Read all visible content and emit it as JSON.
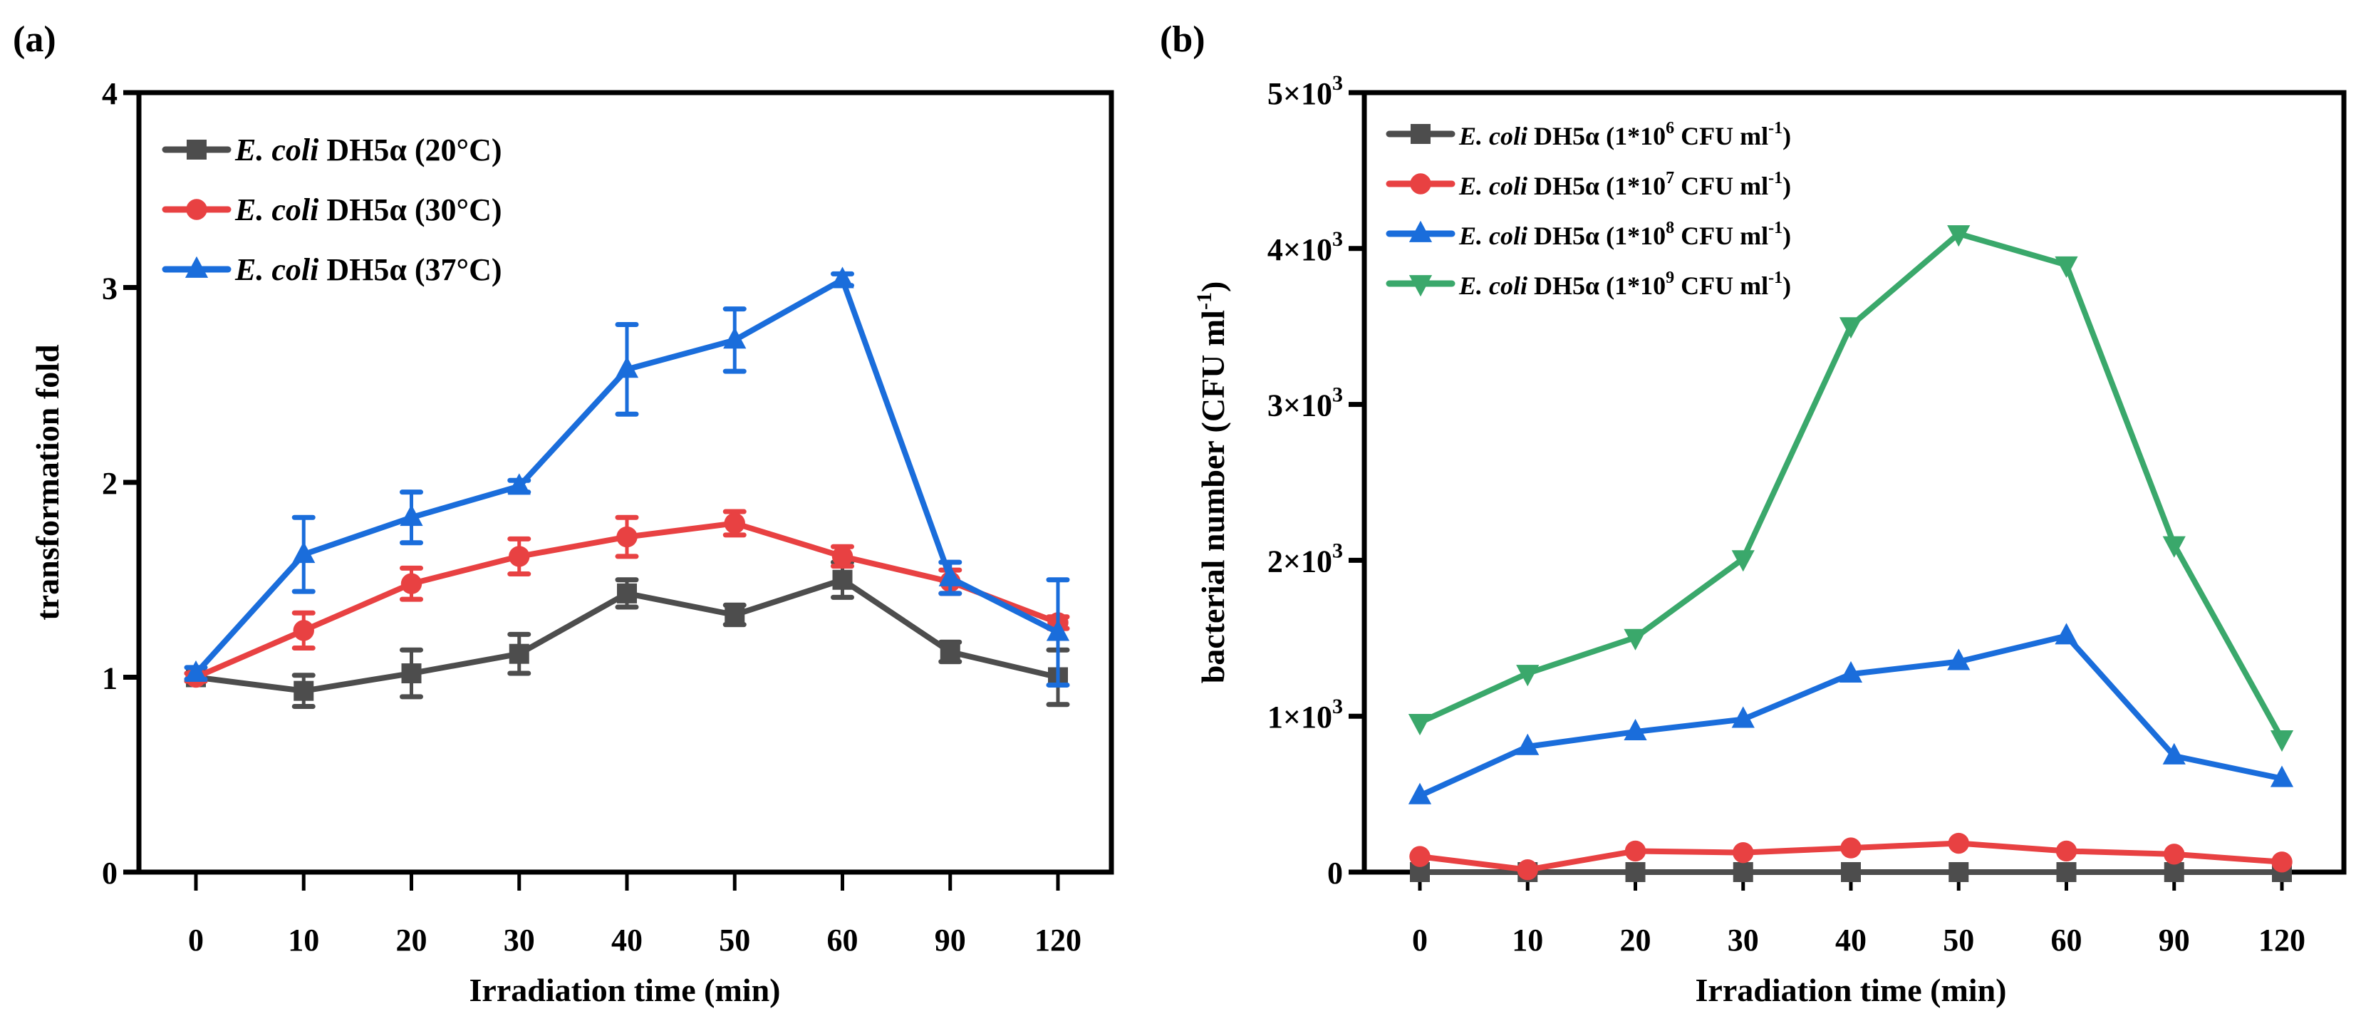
{
  "chart_data": [
    {
      "panel_label": "(a)",
      "type": "line",
      "title": "",
      "xlabel": "Irradiation time (min)",
      "ylabel": "transformation fold",
      "categories": [
        "0",
        "10",
        "20",
        "30",
        "40",
        "50",
        "60",
        "90",
        "120"
      ],
      "ylim": [
        0,
        4
      ],
      "yticks": [
        0,
        1,
        2,
        3,
        4
      ],
      "ytick_labels": [
        "0",
        "1",
        "2",
        "3",
        "4"
      ],
      "grid": false,
      "legend_position": "top-left",
      "error_bars": true,
      "series": [
        {
          "name": "E. coli DH5α (20°C)",
          "name_italic": "E. coli",
          "name_rest": " DH5α (20°C)",
          "color": "#4d4d4d",
          "marker": "square",
          "values": [
            1.0,
            0.93,
            1.02,
            1.12,
            1.43,
            1.32,
            1.5,
            1.13,
            1.0
          ],
          "errors": [
            0.02,
            0.08,
            0.12,
            0.1,
            0.07,
            0.05,
            0.09,
            0.05,
            0.14
          ]
        },
        {
          "name": "E. coli DH5α (30°C)",
          "name_italic": "E. coli",
          "name_rest": " DH5α (30°C)",
          "color": "#e84142",
          "marker": "circle",
          "values": [
            1.0,
            1.24,
            1.48,
            1.62,
            1.72,
            1.79,
            1.62,
            1.49,
            1.28
          ],
          "errors": [
            0.02,
            0.09,
            0.08,
            0.09,
            0.1,
            0.06,
            0.05,
            0.06,
            0.03
          ]
        },
        {
          "name": "E. coli DH5α (37°C)",
          "name_italic": "E. coli",
          "name_rest": " DH5α (37°C)",
          "color": "#1a6ddb",
          "marker": "triangle-up",
          "values": [
            1.02,
            1.63,
            1.82,
            1.98,
            2.58,
            2.73,
            3.04,
            1.51,
            1.23
          ],
          "errors": [
            0.03,
            0.19,
            0.13,
            0.03,
            0.23,
            0.16,
            0.03,
            0.08,
            0.27
          ]
        }
      ]
    },
    {
      "panel_label": "(b)",
      "type": "line",
      "title": "",
      "xlabel": "Irradiation time (min)",
      "ylabel": "bacterial number (CFU ml⁻¹)",
      "ylabel_main": "bacterial number (CFU ml",
      "ylabel_sup": "-1",
      "ylabel_end": ")",
      "categories": [
        "0",
        "10",
        "20",
        "30",
        "40",
        "50",
        "60",
        "90",
        "120"
      ],
      "ylim": [
        0,
        5000
      ],
      "yticks": [
        0,
        1000,
        2000,
        3000,
        4000,
        5000
      ],
      "ytick_labels": [
        "0",
        "1×10³",
        "2×10³",
        "3×10³",
        "4×10³",
        "5×10³"
      ],
      "ytick_mant": [
        "0",
        "1×10",
        "2×10",
        "3×10",
        "4×10",
        "5×10"
      ],
      "ytick_exp": [
        "",
        "3",
        "3",
        "3",
        "3",
        "3"
      ],
      "grid": false,
      "legend_position": "top-left",
      "error_bars": false,
      "series": [
        {
          "name": "E. coli DH5α (1*10⁶ CFU ml⁻¹)",
          "name_italic": "E. coli",
          "name_rest": " DH5α (1*10",
          "name_exp": "6",
          "name_tail": " CFU ml",
          "name_tail_sup": "-1",
          "name_close": ")",
          "color": "#4d4d4d",
          "marker": "square",
          "values": [
            0,
            0,
            0,
            0,
            0,
            0,
            0,
            0,
            0
          ]
        },
        {
          "name": "E. coli DH5α (1*10⁷ CFU ml⁻¹)",
          "name_italic": "E. coli",
          "name_rest": " DH5α (1*10",
          "name_exp": "7",
          "name_tail": " CFU ml",
          "name_tail_sup": "-1",
          "name_close": ")",
          "color": "#e84142",
          "marker": "circle",
          "values": [
            100,
            15,
            135,
            125,
            155,
            185,
            135,
            115,
            65
          ]
        },
        {
          "name": "E. coli DH5α (1*10⁸ CFU ml⁻¹)",
          "name_italic": "E. coli",
          "name_rest": " DH5α (1*10",
          "name_exp": "8",
          "name_tail": " CFU ml",
          "name_tail_sup": "-1",
          "name_close": ")",
          "color": "#1a6ddb",
          "marker": "triangle-up",
          "values": [
            490,
            805,
            900,
            980,
            1270,
            1350,
            1515,
            745,
            600
          ]
        },
        {
          "name": "E. coli DH5α (1*10⁹ CFU ml⁻¹)",
          "name_italic": "E. coli",
          "name_rest": " DH5α (1*10",
          "name_exp": "9",
          "name_tail": " CFU ml",
          "name_tail_sup": "-1",
          "name_close": ")",
          "color": "#3aa86b",
          "marker": "triangle-down",
          "values": [
            960,
            1275,
            1505,
            2010,
            3505,
            4095,
            3895,
            2100,
            855
          ]
        }
      ]
    }
  ]
}
